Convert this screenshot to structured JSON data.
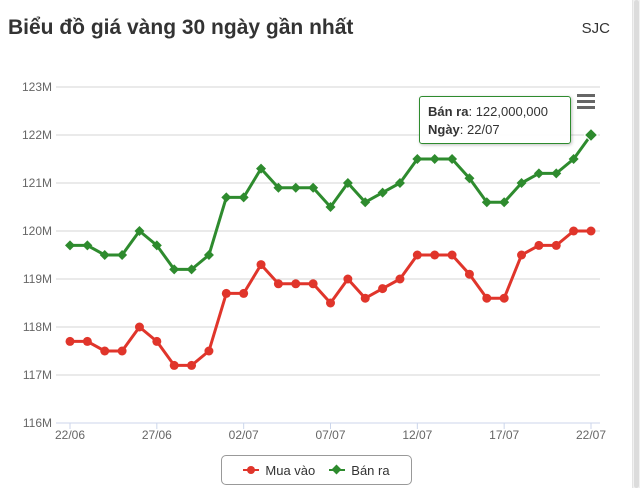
{
  "header": {
    "title": "Biểu đồ giá vàng 30 ngày gần nhất",
    "brand": "SJC"
  },
  "tooltip": {
    "series_label": "Bán ra",
    "value_text": "122,000,000",
    "date_label": "Ngày",
    "date_value": "22/07"
  },
  "colors": {
    "buy": "#e0352b",
    "sell": "#2e8b2e",
    "grid": "#d6d6d6",
    "axis": "#ccd6eb"
  },
  "icons": {
    "menu": "hamburger-menu-icon"
  },
  "chart_data": {
    "type": "line",
    "ylim": [
      116,
      123
    ],
    "yticks": [
      "116M",
      "117M",
      "118M",
      "119M",
      "120M",
      "121M",
      "122M",
      "123M"
    ],
    "x_tick_labels": [
      "22/06",
      "27/06",
      "02/07",
      "07/07",
      "12/07",
      "17/07",
      "22/07"
    ],
    "x_tick_positions": [
      0,
      5,
      10,
      15,
      20,
      25,
      30
    ],
    "grid": true,
    "legend_position": "bottom-center",
    "series": [
      {
        "name": "Mua vào",
        "color": "#e0352b",
        "marker": "circle",
        "values": [
          117.7,
          117.7,
          117.5,
          117.5,
          118.0,
          117.7,
          117.2,
          117.2,
          117.5,
          118.7,
          118.7,
          119.3,
          118.9,
          118.9,
          118.9,
          118.5,
          119.0,
          118.6,
          118.8,
          119.0,
          119.5,
          119.5,
          119.5,
          119.1,
          118.6,
          118.6,
          119.5,
          119.7,
          119.7,
          120.0,
          120.0
        ]
      },
      {
        "name": "Bán ra",
        "color": "#2e8b2e",
        "marker": "diamond",
        "values": [
          119.7,
          119.7,
          119.5,
          119.5,
          120.0,
          119.7,
          119.2,
          119.2,
          119.5,
          120.7,
          120.7,
          121.3,
          120.9,
          120.9,
          120.9,
          120.5,
          121.0,
          120.6,
          120.8,
          121.0,
          121.5,
          121.5,
          121.5,
          121.1,
          120.6,
          120.6,
          121.0,
          121.2,
          121.2,
          121.5,
          122.0
        ]
      }
    ]
  }
}
